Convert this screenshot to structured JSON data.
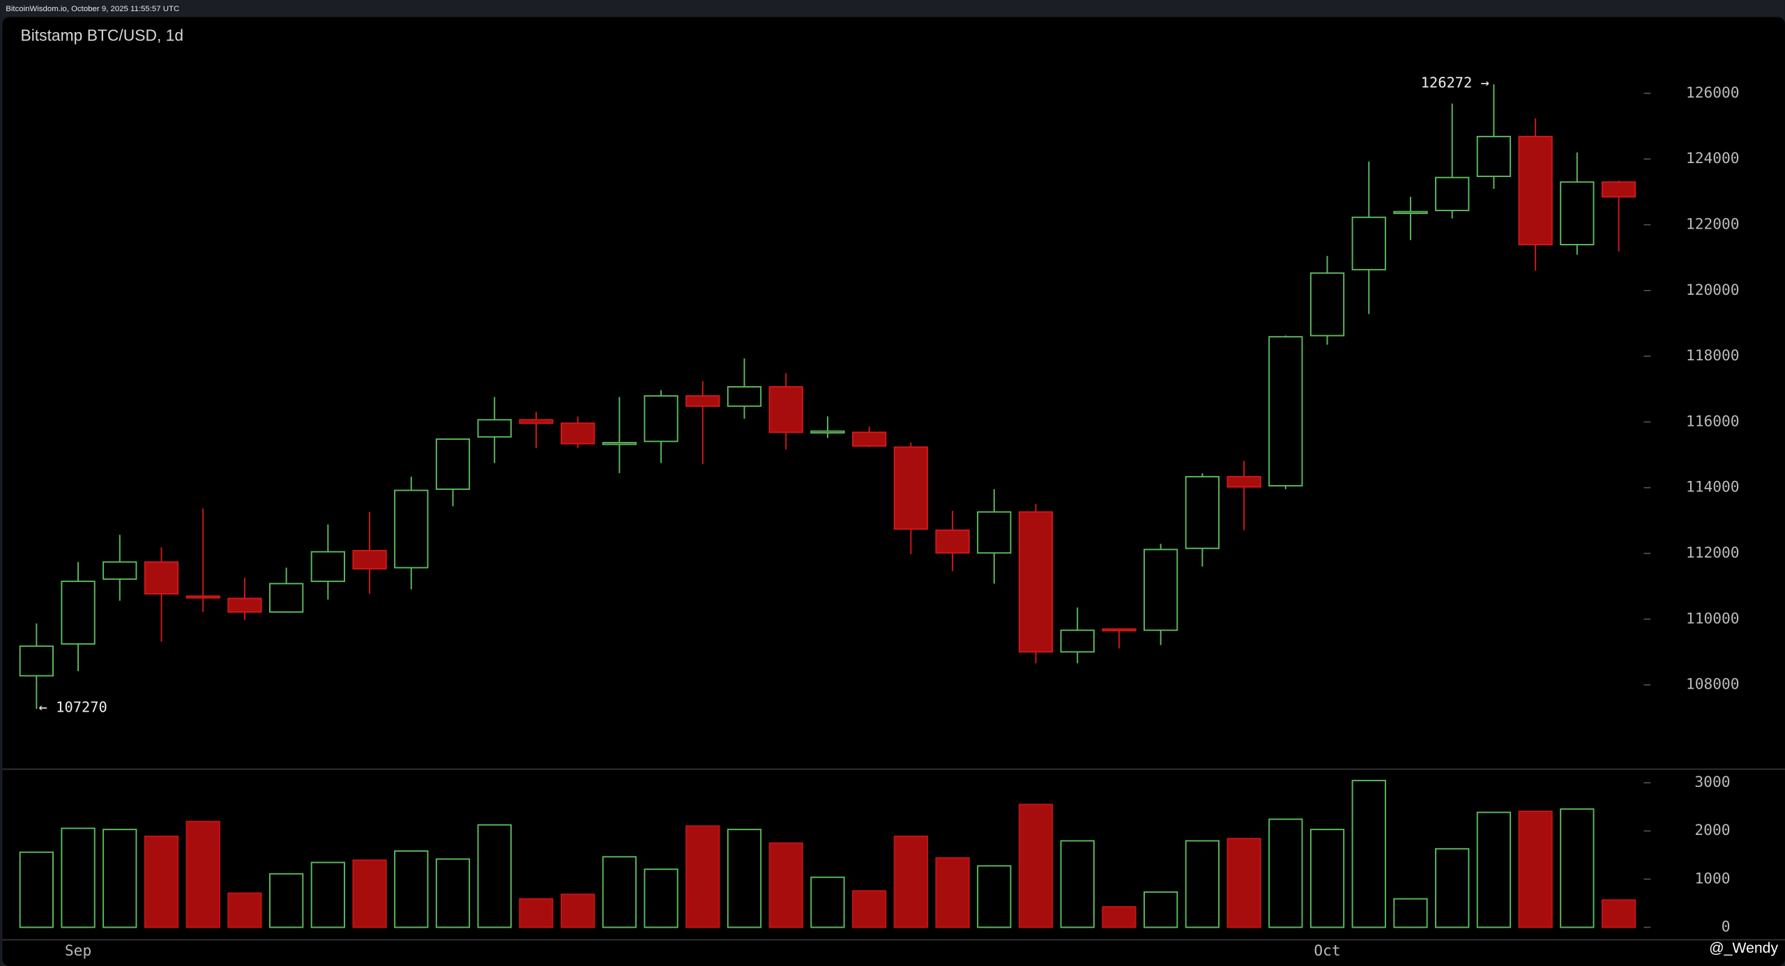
{
  "header": {
    "source": "BitcoinWisdom.io, October 9, 2025 11:55:57 UTC"
  },
  "watermark": "@_Wendy",
  "chart_data": [
    {
      "type": "candlestick",
      "title": "Bitstamp BTC/USD, 1d",
      "categories": [
        null,
        "Sep",
        null,
        null,
        null,
        null,
        null,
        null,
        null,
        null,
        null,
        null,
        null,
        null,
        null,
        null,
        null,
        null,
        null,
        null,
        null,
        null,
        null,
        null,
        null,
        null,
        null,
        null,
        null,
        null,
        null,
        "Oct",
        null,
        null,
        null,
        null,
        null,
        null,
        null
      ],
      "open": [
        108277,
        109246,
        111219,
        111738,
        110700,
        110631,
        110216,
        111150,
        112085,
        111566,
        113954,
        115546,
        116066,
        115962,
        115339,
        115408,
        116792,
        116481,
        117069,
        115685,
        115685,
        115235,
        112708,
        112015,
        113262,
        109004,
        109700,
        109662,
        112154,
        114335,
        114058,
        118627,
        120635,
        122350,
        122435,
        123473,
        124685,
        121396,
        123300
      ],
      "high": [
        109869,
        111738,
        112569,
        112189,
        113366,
        111254,
        111566,
        112881,
        113262,
        114335,
        115500,
        116758,
        116308,
        116170,
        116758,
        116965,
        117242,
        117935,
        117485,
        116169,
        115858,
        115373,
        113296,
        113954,
        113504,
        110354,
        109720,
        112292,
        114439,
        114819,
        118627,
        121050,
        123923,
        122850,
        125688,
        126272,
        125238,
        124200,
        123350
      ],
      "low": [
        107270,
        108416,
        110562,
        109315,
        110216,
        109973,
        110200,
        110596,
        110769,
        110908,
        113435,
        114750,
        115200,
        115200,
        114439,
        114750,
        114715,
        116100,
        115165,
        115512,
        115235,
        111981,
        111462,
        111081,
        108658,
        108658,
        109108,
        109212,
        111600,
        112708,
        113954,
        118350,
        119285,
        121535,
        122192,
        123092,
        120600,
        121085,
        121190
      ],
      "close": [
        109177,
        111150,
        111738,
        110769,
        110680,
        110216,
        111081,
        112050,
        111531,
        113919,
        115477,
        116066,
        115962,
        115339,
        115370,
        116792,
        116481,
        117069,
        115685,
        115720,
        115269,
        112742,
        112015,
        113262,
        109004,
        109662,
        109662,
        112119,
        114335,
        114023,
        118592,
        120531,
        122227,
        122400,
        123438,
        124685,
        121396,
        123300,
        122850
      ],
      "up_color": "#5cb85c",
      "down_color": "#a80d0d",
      "ylim": [
        105470,
        128320
      ],
      "yticks": [
        108000,
        110000,
        112000,
        114000,
        116000,
        118000,
        120000,
        122000,
        124000,
        126000
      ],
      "annotations": [
        "126272 →",
        "← 107270"
      ]
    },
    {
      "type": "bar",
      "values": [
        1559,
        2055,
        2031,
        1890,
        2197,
        709,
        1110,
        1346,
        1394,
        1583,
        1417,
        2126,
        591,
        685,
        1464,
        1205,
        2102,
        2031,
        1748,
        1039,
        756,
        1890,
        1441,
        1275,
        2551,
        1795,
        425,
        732,
        1795,
        1842,
        2244,
        2031,
        3047,
        591,
        1630,
        2386,
        2409,
        2456,
        567
      ],
      "colors": [
        "#5cb85c",
        "#5cb85c",
        "#5cb85c",
        "#a80d0d",
        "#a80d0d",
        "#a80d0d",
        "#5cb85c",
        "#5cb85c",
        "#a80d0d",
        "#5cb85c",
        "#5cb85c",
        "#5cb85c",
        "#a80d0d",
        "#a80d0d",
        "#5cb85c",
        "#5cb85c",
        "#a80d0d",
        "#5cb85c",
        "#a80d0d",
        "#5cb85c",
        "#a80d0d",
        "#a80d0d",
        "#a80d0d",
        "#5cb85c",
        "#a80d0d",
        "#5cb85c",
        "#a80d0d",
        "#5cb85c",
        "#5cb85c",
        "#a80d0d",
        "#5cb85c",
        "#5cb85c",
        "#5cb85c",
        "#5cb85c",
        "#5cb85c",
        "#5cb85c",
        "#a80d0d",
        "#5cb85c",
        "#a80d0d"
      ],
      "ylim": [
        -260,
        3283
      ],
      "yticks": [
        0,
        1000,
        2000,
        3000
      ]
    }
  ]
}
